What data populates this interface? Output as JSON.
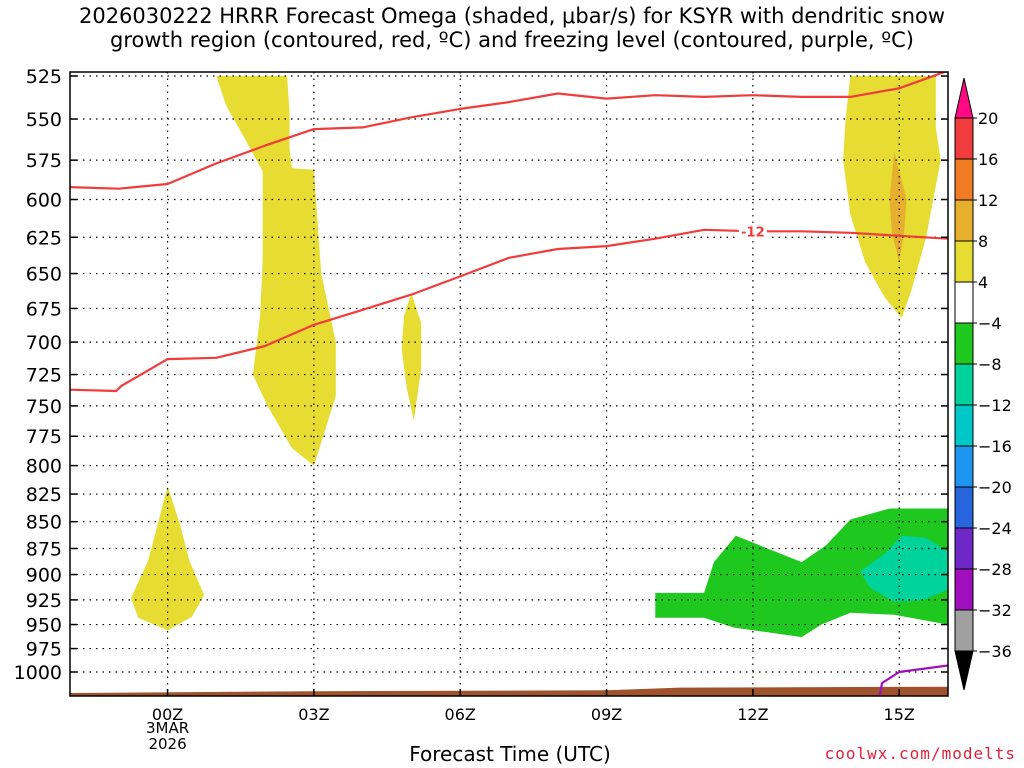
{
  "title_lines": [
    "2026030222 HRRR Forecast Omega (shaded, μbar/s) for KSYR with dendritic snow",
    "growth region (contoured, red, ºC) and freezing level (contoured, purple, ºC)"
  ],
  "x_axis_label": "Forecast Time (UTC)",
  "credit": "coolwx.com/modelts",
  "date_label_lines": [
    "3MAR",
    "2026"
  ],
  "chart_data": {
    "type": "contour",
    "x_unit": "hours relative to 00Z 3MAR2026",
    "x_range": [
      -2,
      16
    ],
    "y_unit": "hPa",
    "y_range": [
      525,
      1000
    ],
    "y_scale": "log",
    "grid": true,
    "y_ticks": [
      525,
      550,
      575,
      600,
      625,
      650,
      675,
      700,
      725,
      750,
      775,
      800,
      825,
      850,
      875,
      900,
      925,
      950,
      975,
      1000
    ],
    "x_ticks": [
      {
        "x": 0,
        "label": "00Z"
      },
      {
        "x": 3,
        "label": "03Z"
      },
      {
        "x": 6,
        "label": "06Z"
      },
      {
        "x": 9,
        "label": "09Z"
      },
      {
        "x": 12,
        "label": "12Z"
      },
      {
        "x": 15,
        "label": "15Z"
      }
    ],
    "colorbar": {
      "levels": [
        "20",
        "16",
        "12",
        "8",
        "4",
        "-4",
        "-8",
        "-12",
        "-16",
        "-20",
        "-24",
        "-28",
        "-32",
        "-36"
      ],
      "colors": [
        "#ff0a82",
        "#f03c3c",
        "#f07d23",
        "#e6af2d",
        "#e6dc32",
        "#ffffff",
        "#1ec81e",
        "#00d29b",
        "#00c8c8",
        "#1e96f0",
        "#2864dc",
        "#6e28c8",
        "#a00fbe",
        "#a0a0a0",
        "#000000"
      ]
    },
    "shaded_regions": [
      {
        "name": "omega-pos-4-upper-left",
        "value": 4,
        "color": "#e6dc32",
        "points": [
          [
            1.0,
            525
          ],
          [
            2.45,
            525
          ],
          [
            2.5,
            546
          ],
          [
            2.5,
            568
          ],
          [
            2.55,
            580
          ],
          [
            3.0,
            581
          ],
          [
            3.15,
            650
          ],
          [
            3.45,
            700
          ],
          [
            3.45,
            742
          ],
          [
            3.0,
            800
          ],
          [
            2.55,
            785
          ],
          [
            2.05,
            750
          ],
          [
            1.75,
            725
          ],
          [
            1.9,
            680
          ],
          [
            1.95,
            640
          ],
          [
            1.95,
            582
          ],
          [
            1.55,
            560
          ],
          [
            1.2,
            542
          ]
        ]
      },
      {
        "name": "omega-pos-4-narrow",
        "value": 4,
        "color": "#e6dc32",
        "points": [
          [
            5.0,
            664
          ],
          [
            5.2,
            686
          ],
          [
            5.2,
            720
          ],
          [
            5.05,
            762
          ],
          [
            4.9,
            735
          ],
          [
            4.8,
            705
          ],
          [
            4.85,
            680
          ]
        ]
      },
      {
        "name": "omega-pos-4-lower-left",
        "value": 4,
        "color": "#e6dc32",
        "points": [
          [
            0.0,
            818
          ],
          [
            0.25,
            852
          ],
          [
            0.45,
            887
          ],
          [
            0.75,
            920
          ],
          [
            0.5,
            942
          ],
          [
            0.0,
            956
          ],
          [
            -0.6,
            943
          ],
          [
            -0.75,
            923
          ],
          [
            -0.4,
            887
          ],
          [
            -0.2,
            852
          ]
        ]
      },
      {
        "name": "omega-pos-4-right",
        "value": 4,
        "color": "#e6dc32",
        "points": [
          [
            14.0,
            525
          ],
          [
            15.75,
            525
          ],
          [
            15.75,
            555
          ],
          [
            15.85,
            575
          ],
          [
            15.55,
            625
          ],
          [
            15.25,
            662
          ],
          [
            15.05,
            682
          ],
          [
            14.7,
            667
          ],
          [
            14.3,
            642
          ],
          [
            14.0,
            610
          ],
          [
            13.85,
            575
          ],
          [
            13.9,
            550
          ]
        ]
      },
      {
        "name": "omega-pos-8-right",
        "value": 8,
        "color": "#e6af2d",
        "points": [
          [
            14.9,
            570
          ],
          [
            15.15,
            600
          ],
          [
            15.1,
            622
          ],
          [
            15.0,
            642
          ],
          [
            14.85,
            622
          ],
          [
            14.8,
            600
          ]
        ]
      },
      {
        "name": "omega-neg-4-lower-right",
        "value": -4,
        "color": "#1ec81e",
        "points": [
          [
            10.0,
            918
          ],
          [
            11.0,
            918
          ],
          [
            11.2,
            888
          ],
          [
            11.65,
            863
          ],
          [
            12.3,
            875
          ],
          [
            13.0,
            888
          ],
          [
            13.5,
            872
          ],
          [
            14.0,
            848
          ],
          [
            14.8,
            838
          ],
          [
            16.0,
            838
          ],
          [
            16.0,
            950
          ],
          [
            14.9,
            940
          ],
          [
            14.0,
            938
          ],
          [
            13.4,
            950
          ],
          [
            13.0,
            963
          ],
          [
            12.3,
            958
          ],
          [
            11.6,
            953
          ],
          [
            11.0,
            943
          ],
          [
            10.0,
            943
          ]
        ]
      },
      {
        "name": "omega-neg-8-lower-right",
        "value": -8,
        "color": "#00d29b",
        "points": [
          [
            14.7,
            880
          ],
          [
            15.05,
            863
          ],
          [
            15.55,
            865
          ],
          [
            16.0,
            878
          ],
          [
            16.0,
            915
          ],
          [
            15.5,
            925
          ],
          [
            14.9,
            927
          ],
          [
            14.4,
            913
          ],
          [
            14.2,
            897
          ]
        ]
      }
    ],
    "contours": [
      {
        "name": "dgz-upper-contour",
        "kind": "dendritic-snow-growth",
        "color": "#f03c3c",
        "points": [
          [
            -2,
            592
          ],
          [
            -1,
            593
          ],
          [
            0,
            590
          ],
          [
            1,
            577
          ],
          [
            2,
            566
          ],
          [
            3,
            556
          ],
          [
            4,
            555
          ],
          [
            5,
            549
          ],
          [
            6,
            544
          ],
          [
            7,
            540
          ],
          [
            8,
            535
          ],
          [
            9,
            538
          ],
          [
            10,
            536
          ],
          [
            11,
            537
          ],
          [
            12,
            536
          ],
          [
            13,
            537
          ],
          [
            14,
            537
          ],
          [
            15,
            532
          ],
          [
            16,
            522
          ]
        ]
      },
      {
        "name": "dgz-lower-contour",
        "kind": "dendritic-snow-growth",
        "color": "#f03c3c",
        "label": "-12",
        "points": [
          [
            -2,
            737
          ],
          [
            -1.05,
            738
          ],
          [
            -0.95,
            734
          ],
          [
            0,
            713
          ],
          [
            1,
            712
          ],
          [
            2,
            703
          ],
          [
            3,
            687
          ],
          [
            4,
            676
          ],
          [
            5,
            665
          ],
          [
            6,
            652
          ],
          [
            7,
            639
          ],
          [
            8,
            633
          ],
          [
            9,
            631
          ],
          [
            10,
            626
          ],
          [
            11,
            620
          ],
          [
            12,
            621
          ],
          [
            13,
            621
          ],
          [
            14,
            622
          ],
          [
            15,
            624
          ],
          [
            16,
            626
          ]
        ]
      },
      {
        "name": "freezing-level-contour",
        "kind": "freezing-level",
        "color": "#a00fbe",
        "points": [
          [
            14.6,
            1025
          ],
          [
            14.65,
            1012
          ],
          [
            15.0,
            1000
          ],
          [
            16.0,
            993
          ]
        ]
      }
    ],
    "terrain": {
      "name": "terrain-surface",
      "color": "#a0522d",
      "points": [
        [
          -2,
          1023
        ],
        [
          3,
          1021
        ],
        [
          9,
          1020
        ],
        [
          10.5,
          1017
        ],
        [
          16,
          1016
        ]
      ]
    }
  }
}
